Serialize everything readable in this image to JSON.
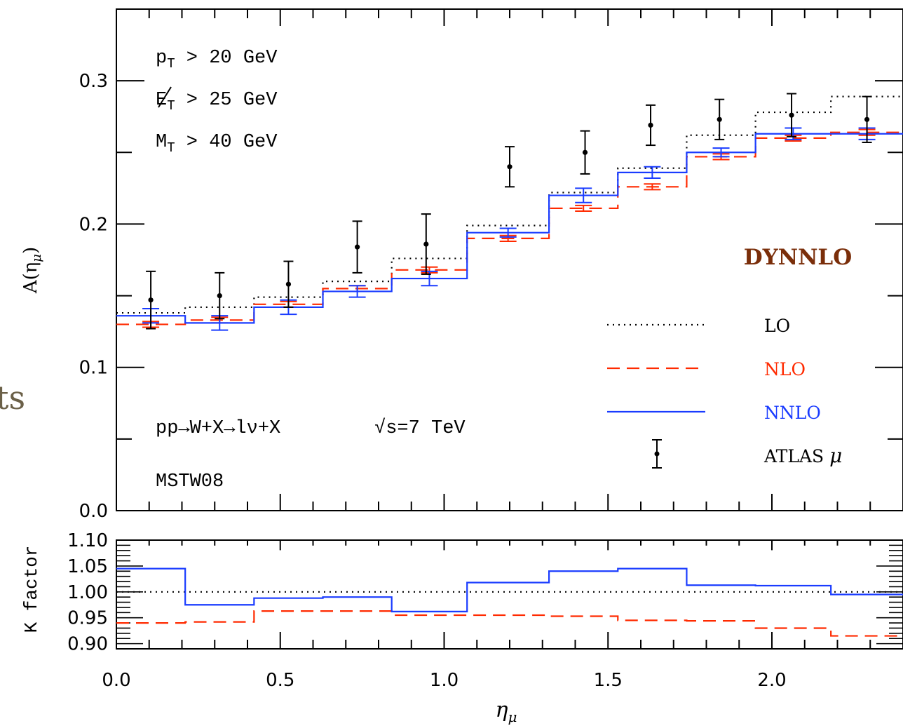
{
  "bg_fragment": "ts",
  "chart_data": [
    {
      "type": "line",
      "ylabel": "A(η",
      "ylabel_sub": "μ",
      "ylabel_close": ")",
      "xlim": [
        0.0,
        2.4
      ],
      "ylim": [
        0.0,
        0.35
      ],
      "yticks": [
        "0.0",
        "0.1",
        "0.2",
        "0.3"
      ],
      "ytick_values": [
        0.0,
        0.1,
        0.2,
        0.3
      ],
      "bin_edges": [
        0.0,
        0.21,
        0.42,
        0.63,
        0.84,
        1.07,
        1.32,
        1.53,
        1.74,
        1.95,
        2.18,
        2.4
      ],
      "series": [
        {
          "name": "LO",
          "style": "dotted",
          "color": "#000000",
          "values": [
            0.138,
            0.142,
            0.149,
            0.16,
            0.176,
            0.199,
            0.222,
            0.239,
            0.262,
            0.278,
            0.289
          ]
        },
        {
          "name": "NLO",
          "style": "dashed",
          "color": "#ff2a00",
          "values": [
            0.13,
            0.133,
            0.144,
            0.155,
            0.168,
            0.19,
            0.211,
            0.226,
            0.247,
            0.26,
            0.264
          ],
          "errors": [
            0.002,
            0.002,
            0.002,
            0.002,
            0.002,
            0.002,
            0.002,
            0.002,
            0.002,
            0.002,
            0.002
          ]
        },
        {
          "name": "NNLO",
          "style": "solid",
          "color": "#1a3cff",
          "values": [
            0.136,
            0.131,
            0.142,
            0.153,
            0.162,
            0.194,
            0.22,
            0.236,
            0.25,
            0.263,
            0.263
          ],
          "errors": [
            0.005,
            0.005,
            0.005,
            0.004,
            0.005,
            0.003,
            0.005,
            0.004,
            0.003,
            0.004,
            0.004
          ]
        }
      ],
      "data_points": {
        "name": "ATLAS μ",
        "x": [
          0.105,
          0.315,
          0.525,
          0.735,
          0.945,
          1.2,
          1.43,
          1.63,
          1.84,
          2.06,
          2.29
        ],
        "y": [
          0.147,
          0.15,
          0.158,
          0.184,
          0.186,
          0.24,
          0.25,
          0.269,
          0.273,
          0.276,
          0.273
        ],
        "err": [
          0.02,
          0.016,
          0.016,
          0.018,
          0.021,
          0.014,
          0.015,
          0.014,
          0.014,
          0.015,
          0.016
        ]
      },
      "annotations": {
        "pt_cut": "p",
        "pt_sub": "T",
        "pt_rest": " > 20 GeV",
        "et_cut": "E",
        "et_sub": "T",
        "et_rest": " > 25 GeV",
        "mt_cut": "M",
        "mt_sub": "T",
        "mt_rest": " > 40 GeV",
        "process": "pp→W+X→lν+X",
        "energy": "√s=7 TeV",
        "pdf": "MSTW08",
        "program": "DYNNLO",
        "program_color": "#7a2e0a"
      },
      "legend": {
        "placement": "lower-right",
        "labels": [
          "LO",
          "NLO",
          "NNLO"
        ],
        "atlas_label": "ATLAS ",
        "atlas_mu": "μ",
        "colors": [
          "#000000",
          "#ff2a00",
          "#1a3cff"
        ]
      }
    },
    {
      "type": "line",
      "ylabel": "K factor",
      "ylim": [
        0.89,
        1.1
      ],
      "yticks": [
        "1.10",
        "1.05",
        "1.00",
        "0.95",
        "0.90"
      ],
      "ytick_values": [
        1.1,
        1.05,
        1.0,
        0.95,
        0.9
      ],
      "xlabel": "η",
      "xlabel_sub": "μ",
      "xticks": [
        "0.0",
        "0.5",
        "1.0",
        "1.5",
        "2.0"
      ],
      "xtick_values": [
        0.0,
        0.5,
        1.0,
        1.5,
        2.0
      ],
      "xlim": [
        0.0,
        2.4
      ],
      "series": [
        {
          "name": "LO",
          "style": "dotted",
          "color": "#000000",
          "x": [
            0.0,
            2.4
          ],
          "values": [
            1.0,
            1.0
          ]
        },
        {
          "name": "NLO",
          "style": "dashed",
          "color": "#ff2a00",
          "bin_edges": [
            0.0,
            0.21,
            0.42,
            0.63,
            0.84,
            1.07,
            1.32,
            1.53,
            1.74,
            1.95,
            2.18,
            2.4
          ],
          "values": [
            0.94,
            0.942,
            0.963,
            0.963,
            0.955,
            0.955,
            0.953,
            0.945,
            0.944,
            0.93,
            0.915
          ]
        },
        {
          "name": "NNLO",
          "style": "solid",
          "color": "#1a3cff",
          "bin_edges": [
            0.0,
            0.21,
            0.42,
            0.63,
            0.84,
            1.07,
            1.32,
            1.53,
            1.74,
            1.95,
            2.18,
            2.4
          ],
          "values": [
            1.045,
            0.975,
            0.988,
            0.99,
            0.962,
            1.018,
            1.04,
            1.045,
            1.013,
            1.012,
            0.995
          ]
        }
      ]
    }
  ]
}
